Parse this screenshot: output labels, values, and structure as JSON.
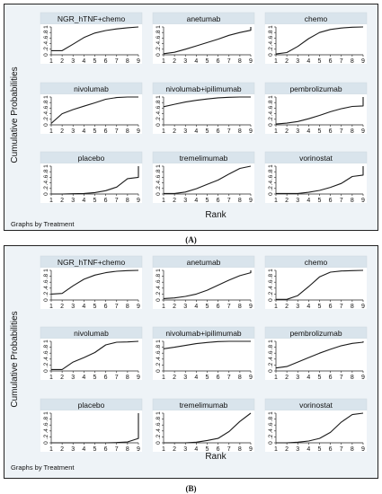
{
  "figure": {
    "ylabel": "Cumulative Probabilities",
    "xlabel": "Rank",
    "caption": "Graphs by Treatment",
    "panel_labels": [
      "(A)",
      "(B)"
    ],
    "xticks": [
      "1",
      "2",
      "3",
      "4",
      "5",
      "6",
      "7",
      "8",
      "9"
    ],
    "yticks": [
      "0",
      ".2",
      ".4",
      ".6",
      ".8",
      "1"
    ]
  },
  "chart_data": [
    {
      "type": "line",
      "panel": "(A)",
      "x": [
        1,
        2,
        3,
        4,
        5,
        6,
        7,
        8,
        9
      ],
      "xlabel": "Rank",
      "ylabel": "Cumulative Probabilities",
      "xlim": [
        1,
        9
      ],
      "ylim": [
        0,
        1
      ],
      "grid": false,
      "facets": [
        {
          "name": "NGR_hTNF+chemo",
          "values": [
            0.15,
            0.15,
            0.38,
            0.62,
            0.78,
            0.87,
            0.93,
            0.97,
            1.0
          ]
        },
        {
          "name": "anetumab",
          "values": [
            0.04,
            0.09,
            0.2,
            0.32,
            0.44,
            0.56,
            0.7,
            0.8,
            0.88,
            1.0
          ],
          "x": [
            1,
            2,
            3,
            4,
            5,
            6,
            7,
            8,
            9,
            9
          ]
        },
        {
          "name": "chemo",
          "values": [
            0.03,
            0.08,
            0.3,
            0.58,
            0.8,
            0.91,
            0.96,
            0.99,
            1.0
          ]
        },
        {
          "name": "nivolumab",
          "values": [
            0.05,
            0.4,
            0.55,
            0.67,
            0.79,
            0.92,
            0.98,
            1.0,
            1.0
          ]
        },
        {
          "name": "nivolumab+ipilimumab",
          "values": [
            0.65,
            0.74,
            0.82,
            0.88,
            0.93,
            0.97,
            0.99,
            1.0,
            1.0
          ]
        },
        {
          "name": "pembrolizumab",
          "values": [
            0.03,
            0.06,
            0.12,
            0.22,
            0.34,
            0.47,
            0.58,
            0.66,
            0.68,
            1.0
          ],
          "x": [
            1,
            2,
            3,
            4,
            5,
            6,
            7,
            8,
            9,
            9
          ]
        },
        {
          "name": "placebo",
          "values": [
            0.0,
            0.0,
            0.01,
            0.02,
            0.05,
            0.12,
            0.25,
            0.55,
            0.6,
            1.0
          ],
          "x": [
            1,
            2,
            3,
            4,
            5,
            6,
            7,
            8,
            9,
            9
          ]
        },
        {
          "name": "tremelimumab",
          "values": [
            0.02,
            0.02,
            0.07,
            0.19,
            0.35,
            0.5,
            0.72,
            0.92,
            1.0
          ]
        },
        {
          "name": "vorinostat",
          "values": [
            0.02,
            0.02,
            0.02,
            0.06,
            0.13,
            0.24,
            0.38,
            0.63,
            0.68,
            1.0
          ],
          "x": [
            1,
            2,
            3,
            4,
            5,
            6,
            7,
            8,
            9,
            9
          ]
        }
      ]
    },
    {
      "type": "line",
      "panel": "(B)",
      "x": [
        1,
        2,
        3,
        4,
        5,
        6,
        7,
        8,
        9
      ],
      "xlabel": "Rank",
      "ylabel": "Cumulative Probabilities",
      "xlim": [
        1,
        9
      ],
      "ylim": [
        0,
        1
      ],
      "grid": false,
      "facets": [
        {
          "name": "NGR_hTNF+chemo",
          "values": [
            0.2,
            0.22,
            0.48,
            0.7,
            0.84,
            0.92,
            0.97,
            0.99,
            1.0
          ]
        },
        {
          "name": "anetumab",
          "values": [
            0.05,
            0.07,
            0.12,
            0.2,
            0.33,
            0.5,
            0.67,
            0.82,
            0.92,
            1.0
          ],
          "x": [
            1,
            2,
            3,
            4,
            5,
            6,
            7,
            8,
            9,
            9
          ]
        },
        {
          "name": "chemo",
          "values": [
            0.02,
            0.02,
            0.15,
            0.45,
            0.78,
            0.94,
            0.98,
            0.99,
            1.0
          ]
        },
        {
          "name": "nivolumab",
          "values": [
            0.05,
            0.05,
            0.3,
            0.45,
            0.62,
            0.88,
            0.97,
            0.98,
            1.0
          ]
        },
        {
          "name": "nivolumab+ipilimumab",
          "values": [
            0.75,
            0.8,
            0.86,
            0.92,
            0.96,
            0.99,
            1.0,
            1.0,
            1.0
          ]
        },
        {
          "name": "pembrolizumab",
          "values": [
            0.1,
            0.15,
            0.3,
            0.45,
            0.6,
            0.73,
            0.85,
            0.93,
            0.97,
            1.0
          ],
          "x": [
            1,
            2,
            3,
            4,
            5,
            6,
            7,
            8,
            9,
            9
          ]
        },
        {
          "name": "placebo",
          "values": [
            0.0,
            0.0,
            0.0,
            0.0,
            0.0,
            0.0,
            0.01,
            0.03,
            0.15,
            1.0
          ],
          "x": [
            1,
            2,
            3,
            4,
            5,
            6,
            7,
            8,
            9,
            9
          ]
        },
        {
          "name": "tremelimumab",
          "values": [
            0.0,
            0.0,
            0.0,
            0.02,
            0.08,
            0.15,
            0.38,
            0.72,
            1.0
          ]
        },
        {
          "name": "vorinostat",
          "values": [
            0.0,
            0.0,
            0.02,
            0.06,
            0.15,
            0.35,
            0.7,
            0.95,
            1.0
          ]
        }
      ]
    }
  ]
}
